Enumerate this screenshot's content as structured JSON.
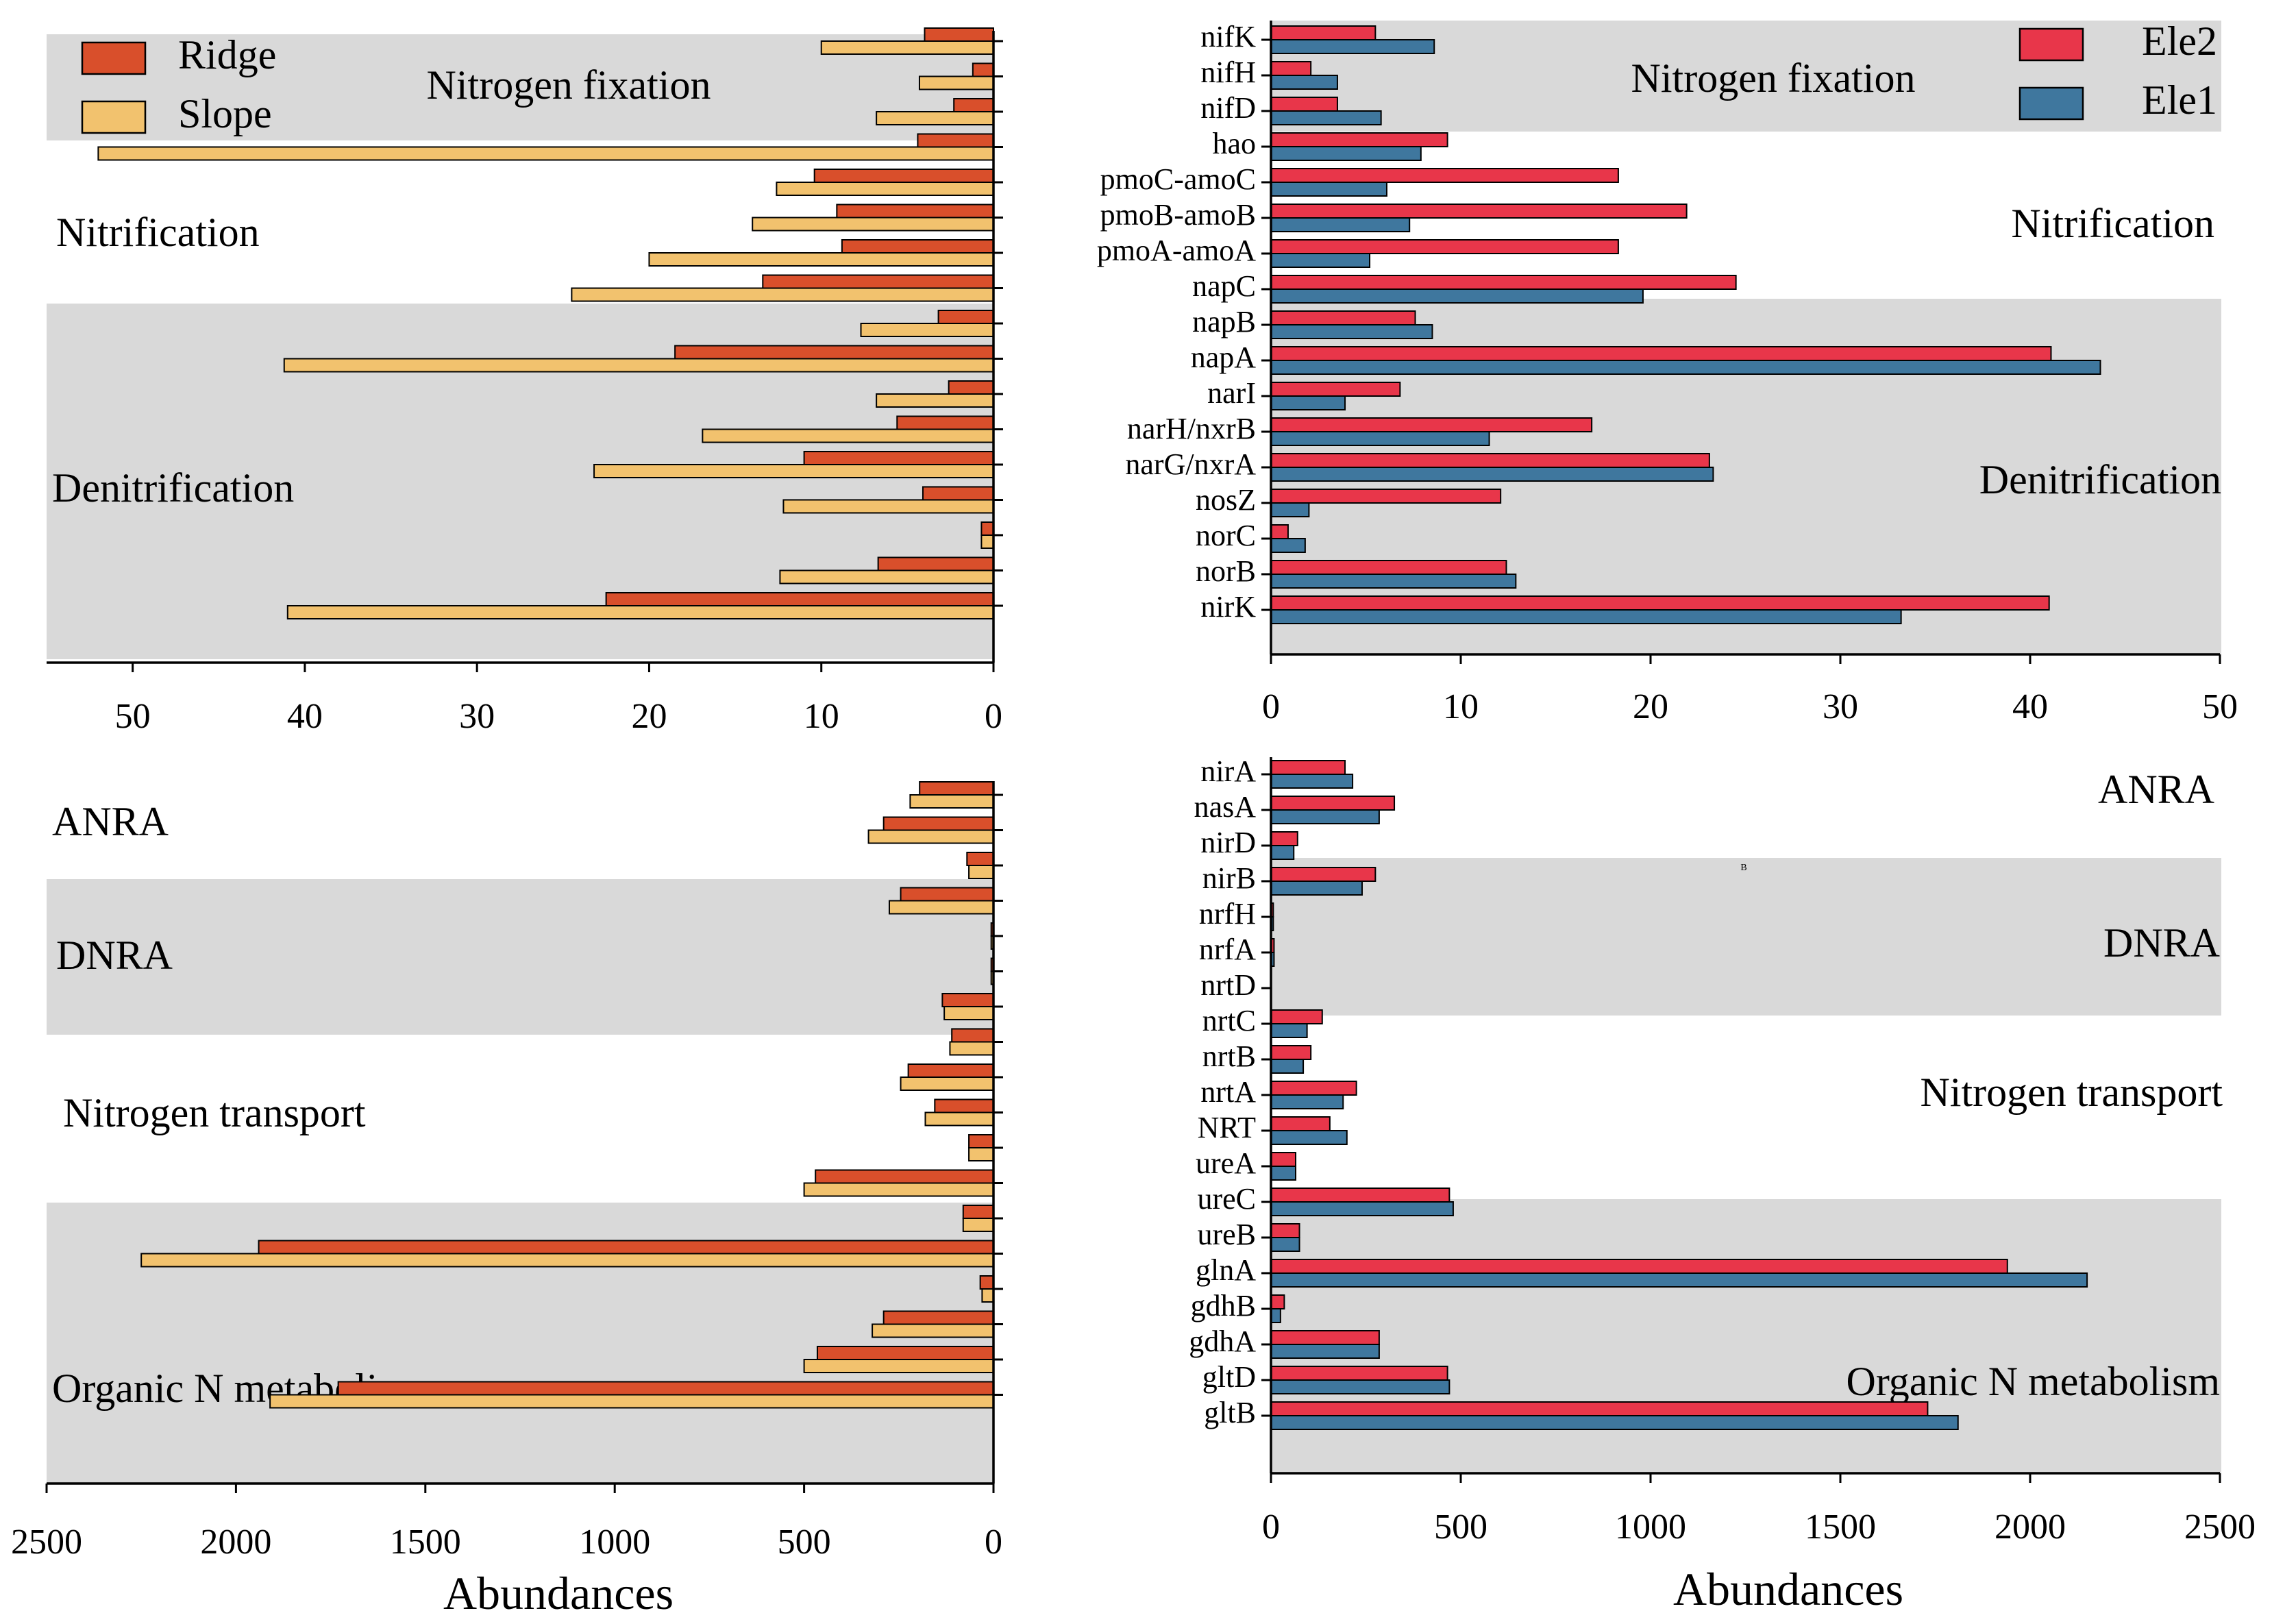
{
  "colors": {
    "ridge": "#d94f2b",
    "slope": "#f2c26e",
    "ele2": "#e8364a",
    "ele1": "#3f779e",
    "band": "#d9d9d9",
    "axis": "#000000"
  },
  "xlabels": {
    "bottom_left": "Abundances",
    "bottom_right": "Abundances"
  },
  "chart_data": [
    {
      "id": "top-left",
      "type": "bar",
      "orientation": "horizontal",
      "x_reversed": true,
      "xlim": [
        0,
        55
      ],
      "xticks": [
        50,
        40,
        30,
        20,
        10,
        0
      ],
      "legend": {
        "position": "top-left",
        "entries": [
          "Ridge",
          "Slope"
        ]
      },
      "bands": [
        {
          "label": "Nitrogen fixation",
          "shaded": true,
          "label_pos": "center"
        },
        {
          "label": "Nitrification",
          "shaded": false,
          "label_pos": "left"
        },
        {
          "label": "Denitrification",
          "shaded": true,
          "label_pos": "left"
        }
      ],
      "series_names": [
        "Ridge",
        "Slope"
      ],
      "rows": [
        {
          "band": 0,
          "ridge": 4.0,
          "slope": 10.0
        },
        {
          "band": 0,
          "ridge": 1.2,
          "slope": 4.3
        },
        {
          "band": 0,
          "ridge": 2.3,
          "slope": 6.8
        },
        {
          "band": 1,
          "ridge": 4.4,
          "slope": 52.0
        },
        {
          "band": 1,
          "ridge": 10.4,
          "slope": 12.6
        },
        {
          "band": 1,
          "ridge": 9.1,
          "slope": 14.0
        },
        {
          "band": 1,
          "ridge": 8.8,
          "slope": 20.0
        },
        {
          "band": 2,
          "ridge": 13.4,
          "slope": 24.5
        },
        {
          "band": 2,
          "ridge": 3.2,
          "slope": 7.7
        },
        {
          "band": 2,
          "ridge": 18.5,
          "slope": 41.2
        },
        {
          "band": 2,
          "ridge": 2.6,
          "slope": 6.8
        },
        {
          "band": 2,
          "ridge": 5.6,
          "slope": 16.9
        },
        {
          "band": 2,
          "ridge": 11.0,
          "slope": 23.2
        },
        {
          "band": 2,
          "ridge": 4.1,
          "slope": 12.2
        },
        {
          "band": 2,
          "ridge": 0.7,
          "slope": 0.7
        },
        {
          "band": 2,
          "ridge": 6.7,
          "slope": 12.4
        },
        {
          "band": 2,
          "ridge": 22.5,
          "slope": 41.0
        }
      ]
    },
    {
      "id": "top-right",
      "type": "bar",
      "orientation": "horizontal",
      "xlim": [
        0,
        50
      ],
      "xticks": [
        0,
        10,
        20,
        30,
        40,
        50
      ],
      "legend": {
        "position": "top-right",
        "entries": [
          "Ele2",
          "Ele1"
        ]
      },
      "bands": [
        {
          "label": "Nitrogen fixation",
          "shaded": true,
          "label_pos": "center"
        },
        {
          "label": "Nitrification",
          "shaded": false,
          "label_pos": "right"
        },
        {
          "label": "Denitrification",
          "shaded": true,
          "label_pos": "right"
        }
      ],
      "series_names": [
        "Ele2",
        "Ele1"
      ],
      "rows": [
        {
          "band": 0,
          "gene": "nifK",
          "ele2": 5.5,
          "ele1": 8.6
        },
        {
          "band": 0,
          "gene": "nifH",
          "ele2": 2.1,
          "ele1": 3.5
        },
        {
          "band": 0,
          "gene": "nifD",
          "ele2": 3.5,
          "ele1": 5.8
        },
        {
          "band": 1,
          "gene": "hao",
          "ele2": 9.3,
          "ele1": 7.9
        },
        {
          "band": 1,
          "gene": "pmoC-amoC",
          "ele2": 18.3,
          "ele1": 6.1
        },
        {
          "band": 1,
          "gene": "pmoB-amoB",
          "ele2": 21.9,
          "ele1": 7.3
        },
        {
          "band": 1,
          "gene": "pmoA-amoA",
          "ele2": 18.3,
          "ele1": 5.2
        },
        {
          "band": 2,
          "gene": "napC",
          "ele2": 24.5,
          "ele1": 19.6
        },
        {
          "band": 2,
          "gene": "napB",
          "ele2": 7.6,
          "ele1": 8.5
        },
        {
          "band": 2,
          "gene": "napA",
          "ele2": 41.1,
          "ele1": 43.7
        },
        {
          "band": 2,
          "gene": "narI",
          "ele2": 6.8,
          "ele1": 3.9
        },
        {
          "band": 2,
          "gene": "narH/nxrB",
          "ele2": 16.9,
          "ele1": 11.5
        },
        {
          "band": 2,
          "gene": "narG/nxrA",
          "ele2": 23.1,
          "ele1": 23.3
        },
        {
          "band": 2,
          "gene": "nosZ",
          "ele2": 12.1,
          "ele1": 2.0
        },
        {
          "band": 2,
          "gene": "norC",
          "ele2": 0.9,
          "ele1": 1.8
        },
        {
          "band": 2,
          "gene": "norB",
          "ele2": 12.4,
          "ele1": 12.9
        },
        {
          "band": 2,
          "gene": "nirK",
          "ele2": 41.0,
          "ele1": 33.2
        }
      ]
    },
    {
      "id": "bottom-left",
      "type": "bar",
      "orientation": "horizontal",
      "x_reversed": true,
      "xlim": [
        0,
        2500
      ],
      "xticks": [
        2500,
        2000,
        1500,
        1000,
        500,
        0
      ],
      "xlabel": "Abundances",
      "bands": [
        {
          "label": "ANRA",
          "shaded": false,
          "label_pos": "left"
        },
        {
          "label": "DNRA",
          "shaded": true,
          "label_pos": "left"
        },
        {
          "label": "Nitrogen transport",
          "shaded": false,
          "label_pos": "left"
        },
        {
          "label": "Organic N metabolism",
          "shaded": true,
          "label_pos": "left"
        }
      ],
      "series_names": [
        "Ridge",
        "Slope"
      ],
      "rows": [
        {
          "band": 0,
          "ridge": 195,
          "slope": 220
        },
        {
          "band": 0,
          "ridge": 290,
          "slope": 330
        },
        {
          "band": 1,
          "ridge": 70,
          "slope": 65
        },
        {
          "band": 1,
          "ridge": 245,
          "slope": 275
        },
        {
          "band": 1,
          "ridge": 6,
          "slope": 6
        },
        {
          "band": 1,
          "ridge": 6,
          "slope": 6
        },
        {
          "band": 2,
          "ridge": 135,
          "slope": 130
        },
        {
          "band": 2,
          "ridge": 110,
          "slope": 115
        },
        {
          "band": 2,
          "ridge": 225,
          "slope": 245
        },
        {
          "band": 2,
          "ridge": 155,
          "slope": 180
        },
        {
          "band": 3,
          "ridge": 65,
          "slope": 65
        },
        {
          "band": 3,
          "ridge": 470,
          "slope": 500
        },
        {
          "band": 3,
          "ridge": 80,
          "slope": 80
        },
        {
          "band": 3,
          "ridge": 1940,
          "slope": 2250
        },
        {
          "band": 3,
          "ridge": 35,
          "slope": 30
        },
        {
          "band": 3,
          "ridge": 290,
          "slope": 320
        },
        {
          "band": 3,
          "ridge": 465,
          "slope": 500
        },
        {
          "band": 3,
          "ridge": 1730,
          "slope": 1910
        }
      ]
    },
    {
      "id": "bottom-right",
      "type": "bar",
      "orientation": "horizontal",
      "xlim": [
        0,
        2500
      ],
      "xticks": [
        0,
        500,
        1000,
        1500,
        2000,
        2500
      ],
      "xlabel": "Abundances",
      "stray_mark": "B",
      "bands": [
        {
          "label": "ANRA",
          "shaded": false,
          "label_pos": "right"
        },
        {
          "label": "DNRA",
          "shaded": true,
          "label_pos": "right"
        },
        {
          "label": "Nitrogen transport",
          "shaded": false,
          "label_pos": "right"
        },
        {
          "label": "Organic N metabolism",
          "shaded": true,
          "label_pos": "right"
        }
      ],
      "series_names": [
        "Ele2",
        "Ele1"
      ],
      "rows": [
        {
          "band": 0,
          "gene": "nirA",
          "ele2": 195,
          "ele1": 215
        },
        {
          "band": 0,
          "gene": "nasA",
          "ele2": 325,
          "ele1": 285
        },
        {
          "band": 1,
          "gene": "nirD",
          "ele2": 70,
          "ele1": 60
        },
        {
          "band": 1,
          "gene": "nirB",
          "ele2": 275,
          "ele1": 240
        },
        {
          "band": 1,
          "gene": "nrfH",
          "ele2": 6,
          "ele1": 6
        },
        {
          "band": 1,
          "gene": "nrfA",
          "ele2": 8,
          "ele1": 8
        },
        {
          "band": 2,
          "gene": "nrtD",
          "ele2": 0,
          "ele1": 0
        },
        {
          "band": 2,
          "gene": "nrtC",
          "ele2": 135,
          "ele1": 95
        },
        {
          "band": 2,
          "gene": "nrtB",
          "ele2": 105,
          "ele1": 85
        },
        {
          "band": 2,
          "gene": "nrtA",
          "ele2": 225,
          "ele1": 190
        },
        {
          "band": 2,
          "gene": "NRT",
          "ele2": 155,
          "ele1": 200
        },
        {
          "band": 3,
          "gene": "ureA",
          "ele2": 65,
          "ele1": 65
        },
        {
          "band": 3,
          "gene": "ureC",
          "ele2": 470,
          "ele1": 480
        },
        {
          "band": 3,
          "gene": "ureB",
          "ele2": 75,
          "ele1": 75
        },
        {
          "band": 3,
          "gene": "glnA",
          "ele2": 1940,
          "ele1": 2150
        },
        {
          "band": 3,
          "gene": "gdhB",
          "ele2": 35,
          "ele1": 25
        },
        {
          "band": 3,
          "gene": "gdhA",
          "ele2": 285,
          "ele1": 285
        },
        {
          "band": 3,
          "gene": "gltD",
          "ele2": 465,
          "ele1": 470
        },
        {
          "band": 3,
          "gene": "gltB",
          "ele2": 1730,
          "ele1": 1810
        }
      ]
    }
  ]
}
